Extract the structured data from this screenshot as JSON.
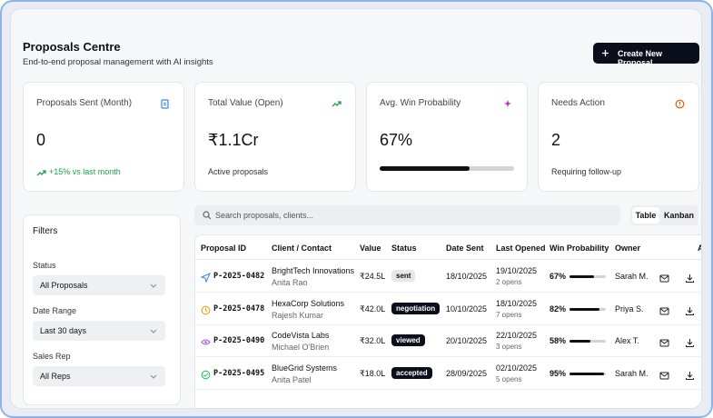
{
  "header": {
    "title": "Proposals Centre",
    "subtitle": "End-to-end proposal management with AI insights",
    "button": "Create New Proposal"
  },
  "stats": [
    {
      "label": "Proposals Sent (Month)",
      "value": "0",
      "note": "+15% vs last month"
    },
    {
      "label": "Total Value (Open)",
      "value": "₹1.1Cr",
      "note": "Active proposals"
    },
    {
      "label": "Avg. Win Probability",
      "value": 67,
      "value_label": "67%"
    },
    {
      "label": "Needs Action",
      "value": "2",
      "note": "Requiring follow-up"
    }
  ],
  "filters": {
    "title": "Filters",
    "fields": [
      {
        "label": "Status",
        "value": "All Proposals"
      },
      {
        "label": "Date Range",
        "value": "Last 30 days"
      },
      {
        "label": "Sales Rep",
        "value": "All Reps"
      }
    ]
  },
  "toolbar": {
    "search": "Search proposals, clients...",
    "tabs": [
      "Table",
      "Kanban"
    ]
  },
  "table": {
    "columns": [
      "Proposal ID",
      "Client / Contact",
      "Value",
      "Status",
      "Date Sent",
      "Last Opened",
      "Win Probability",
      "Owner",
      "Actions"
    ],
    "rows": [
      {
        "id": "P-2025-0482",
        "client": "BrightTech Innovations",
        "contact": "Anita Rao",
        "value": "₹24.5L",
        "status": "sent",
        "sent": "18/10/2025",
        "opened": "19/10/2025",
        "opens": "2 opens",
        "win": 67,
        "win_label": "67%",
        "owner": "Sarah M."
      },
      {
        "id": "P-2025-0478",
        "client": "HexaCorp Solutions",
        "contact": "Rajesh Kumar",
        "value": "₹42.0L",
        "status": "negotiation",
        "sent": "10/10/2025",
        "opened": "18/10/2025",
        "opens": "7 opens",
        "win": 82,
        "win_label": "82%",
        "owner": "Priya S."
      },
      {
        "id": "P-2025-0490",
        "client": "CodeVista Labs",
        "contact": "Michael O'Brien",
        "value": "₹32.0L",
        "status": "viewed",
        "sent": "20/10/2025",
        "opened": "22/10/2025",
        "opens": "3 opens",
        "win": 58,
        "win_label": "58%",
        "owner": "Alex T."
      },
      {
        "id": "P-2025-0495",
        "client": "BlueGrid Systems",
        "contact": "Anita Patel",
        "value": "₹18.0L",
        "status": "accepted",
        "sent": "28/09/2025",
        "opened": "02/10/2025",
        "opens": "5 opens",
        "win": 95,
        "win_label": "95%",
        "owner": "Sarah M."
      }
    ]
  }
}
